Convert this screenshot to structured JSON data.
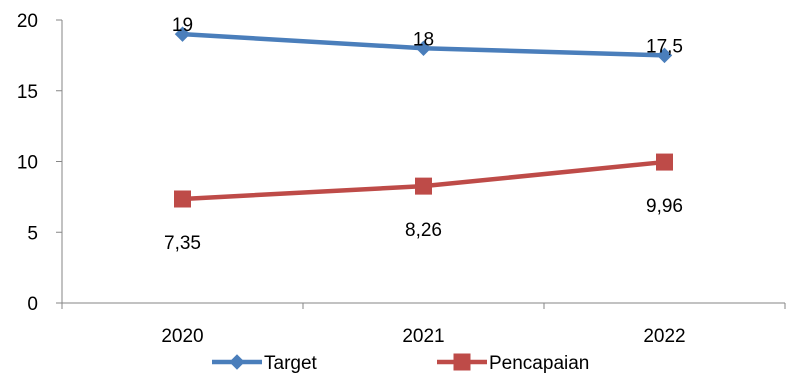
{
  "chart_data": {
    "type": "line",
    "categories": [
      "2020",
      "2021",
      "2022"
    ],
    "series": [
      {
        "name": "Target",
        "values": [
          19,
          18,
          17.5
        ],
        "labels": [
          "19",
          "18",
          "17,5"
        ],
        "color": "#4a7ebb",
        "marker": "diamond"
      },
      {
        "name": "Pencapaian",
        "values": [
          7.35,
          8.26,
          9.96
        ],
        "labels": [
          "7,35",
          "8,26",
          "9,96"
        ],
        "color": "#be4b48",
        "marker": "square"
      }
    ],
    "yticks": [
      "0",
      "5",
      "10",
      "15",
      "20"
    ],
    "ylim": [
      0,
      20
    ],
    "grid": false,
    "legend_position": "bottom"
  }
}
